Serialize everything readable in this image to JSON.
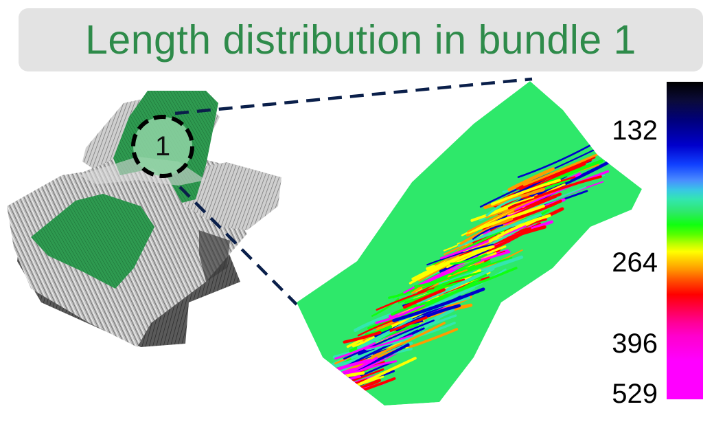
{
  "title": "Length distribution in bundle 1",
  "bundle_marker": {
    "label": "1"
  },
  "colorbar": {
    "tick_labels": [
      "132",
      "264",
      "396",
      "529"
    ],
    "colors": [
      "#000000",
      "#0000cc",
      "#33e6b0",
      "#10ff10",
      "#ffff00",
      "#ff9a00",
      "#ff0000",
      "#ff00ff"
    ]
  },
  "colors": {
    "title": "#2e8b4a",
    "title_background": "#e3e3e3",
    "highlight_bundle": "#2e9a50",
    "zoom_lines": "#0a1f4a"
  }
}
